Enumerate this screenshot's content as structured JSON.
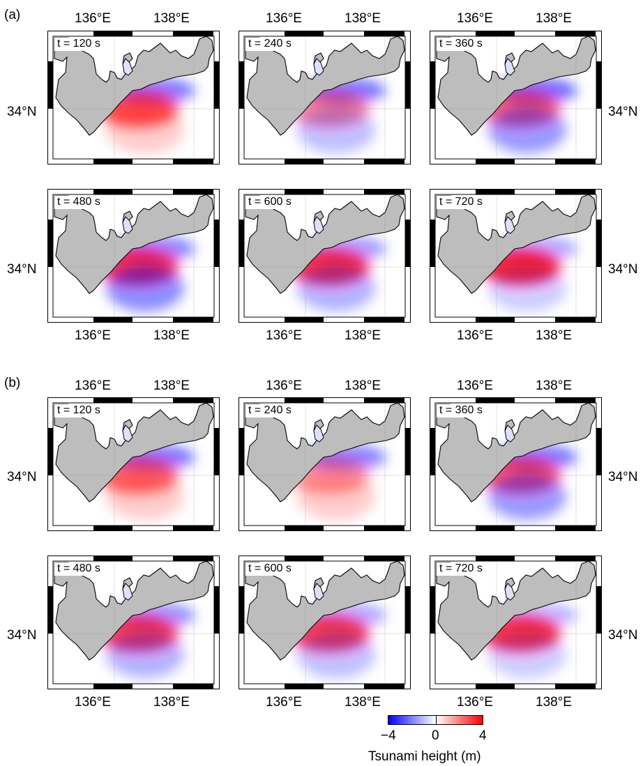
{
  "panels": [
    {
      "label": "(a)",
      "rows": [
        {
          "lat_left": "34°N",
          "lat_right": "34°N",
          "top_lon": [
            "136°E",
            "138°E"
          ],
          "maps": [
            {
              "time": "t = 120 s",
              "pattern": [
                {
                  "c": "blue",
                  "a": 0.55
                },
                {
                  "c": "red",
                  "a": 0.7
                },
                {
                  "c": "red",
                  "a": 0.2
                }
              ]
            },
            {
              "time": "t = 240 s",
              "pattern": [
                {
                  "c": "blue",
                  "a": 0.55
                },
                {
                  "c": "red",
                  "a": 0.45
                },
                {
                  "c": "blue",
                  "a": 0.25
                }
              ]
            },
            {
              "time": "t = 360 s",
              "pattern": [
                {
                  "c": "blue",
                  "a": 0.6
                },
                {
                  "c": "red",
                  "a": 0.6
                },
                {
                  "c": "blue",
                  "a": 0.4
                }
              ]
            }
          ]
        },
        {
          "lat_left": "34°N",
          "lat_right": "34°N",
          "bottom_lon": [
            "136°E",
            "138°E"
          ],
          "maps": [
            {
              "time": "t = 480 s",
              "pattern": [
                {
                  "c": "blue",
                  "a": 0.5
                },
                {
                  "c": "red",
                  "a": 0.8
                },
                {
                  "c": "blue",
                  "a": 0.45
                }
              ]
            },
            {
              "time": "t = 600 s",
              "pattern": [
                {
                  "c": "blue",
                  "a": 0.4
                },
                {
                  "c": "red",
                  "a": 0.8
                },
                {
                  "c": "blue",
                  "a": 0.3
                }
              ]
            },
            {
              "time": "t = 720 s",
              "pattern": [
                {
                  "c": "blue",
                  "a": 0.35
                },
                {
                  "c": "red",
                  "a": 0.85
                },
                {
                  "c": "blue",
                  "a": 0.2
                }
              ]
            }
          ]
        }
      ]
    },
    {
      "label": "(b)",
      "rows": [
        {
          "lat_left": "34°N",
          "lat_right": "34°N",
          "top_lon": [
            "136°E",
            "138°E"
          ],
          "maps": [
            {
              "time": "t = 120 s",
              "pattern": [
                {
                  "c": "blue",
                  "a": 0.55
                },
                {
                  "c": "red",
                  "a": 0.6
                },
                {
                  "c": "red",
                  "a": 0.2
                }
              ]
            },
            {
              "time": "t = 240 s",
              "pattern": [
                {
                  "c": "blue",
                  "a": 0.5
                },
                {
                  "c": "red",
                  "a": 0.4
                },
                {
                  "c": "red",
                  "a": 0.2
                }
              ]
            },
            {
              "time": "t = 360 s",
              "pattern": [
                {
                  "c": "blue",
                  "a": 0.55
                },
                {
                  "c": "red",
                  "a": 0.65
                },
                {
                  "c": "blue",
                  "a": 0.4
                }
              ]
            }
          ]
        },
        {
          "lat_left": "34°N",
          "lat_right": "34°N",
          "bottom_lon": [
            "136°E",
            "138°E"
          ],
          "maps": [
            {
              "time": "t = 480 s",
              "pattern": [
                {
                  "c": "blue",
                  "a": 0.45
                },
                {
                  "c": "red",
                  "a": 0.75
                },
                {
                  "c": "blue",
                  "a": 0.3
                }
              ]
            },
            {
              "time": "t = 600 s",
              "pattern": [
                {
                  "c": "blue",
                  "a": 0.35
                },
                {
                  "c": "red",
                  "a": 0.75
                },
                {
                  "c": "blue",
                  "a": 0.25
                }
              ]
            },
            {
              "time": "t = 720 s",
              "pattern": [
                {
                  "c": "blue",
                  "a": 0.3
                },
                {
                  "c": "red",
                  "a": 0.8
                },
                {
                  "c": "blue",
                  "a": 0.2
                }
              ]
            }
          ]
        }
      ]
    }
  ],
  "colorbar": {
    "title": "Tsunami height (m)",
    "min_label": "−4",
    "mid_label": "0",
    "max_label": "4",
    "min": -4,
    "max": 4,
    "colors": {
      "low": "#0000ff",
      "mid": "#ffffff",
      "high": "#ff0000"
    }
  },
  "colors": {
    "land": "#bdbdbd",
    "sea": "#ffffff",
    "positive": "#ff0000",
    "negative": "#0000ff"
  }
}
